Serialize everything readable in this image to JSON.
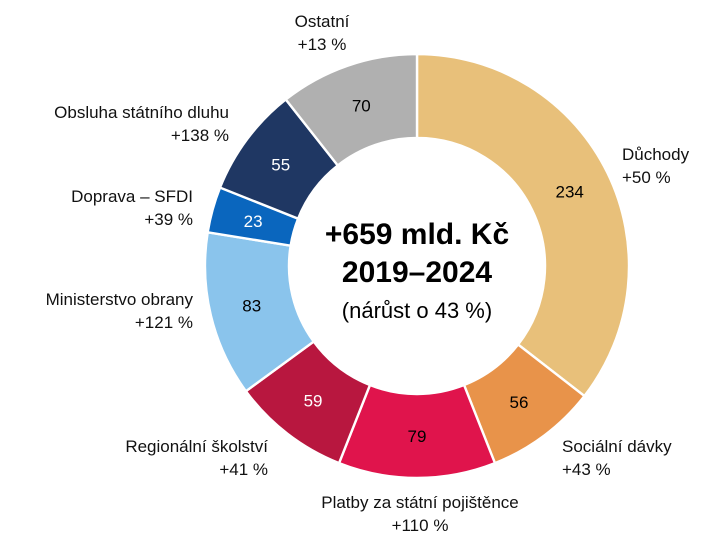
{
  "chart_data": {
    "type": "pie",
    "title": "",
    "center_text": {
      "line1": "+659 mld. Kč",
      "line2": "2019–2024",
      "line3": "(nárůst o 43 %)"
    },
    "slices": [
      {
        "name": "Důchody",
        "value": 234,
        "growth": "+50 %",
        "color": "#E8C07A",
        "value_color": "#000000"
      },
      {
        "name": "Sociální dávky",
        "value": 56,
        "growth": "+43 %",
        "color": "#E8934A",
        "value_color": "#000000"
      },
      {
        "name": "Platby za státní pojištěnce",
        "value": 79,
        "growth": "+110 %",
        "color": "#E0144C",
        "value_color": "#000000"
      },
      {
        "name": "Regionální školství",
        "value": 59,
        "growth": "+41 %",
        "color": "#B8173F",
        "value_color": "#ffffff"
      },
      {
        "name": "Ministerstvo obrany",
        "value": 83,
        "growth": "+121 %",
        "color": "#8AC4EC",
        "value_color": "#000000"
      },
      {
        "name": "Doprava – SFDI",
        "value": 23,
        "growth": "+39 %",
        "color": "#0A66BE",
        "value_color": "#ffffff"
      },
      {
        "name": "Obsluha státního dluhu",
        "value": 55,
        "growth": "+138 %",
        "color": "#1F3763",
        "value_color": "#ffffff"
      },
      {
        "name": "Ostatní",
        "value": 70,
        "growth": "+13 %",
        "color": "#B0B0B0",
        "value_color": "#000000"
      }
    ]
  }
}
